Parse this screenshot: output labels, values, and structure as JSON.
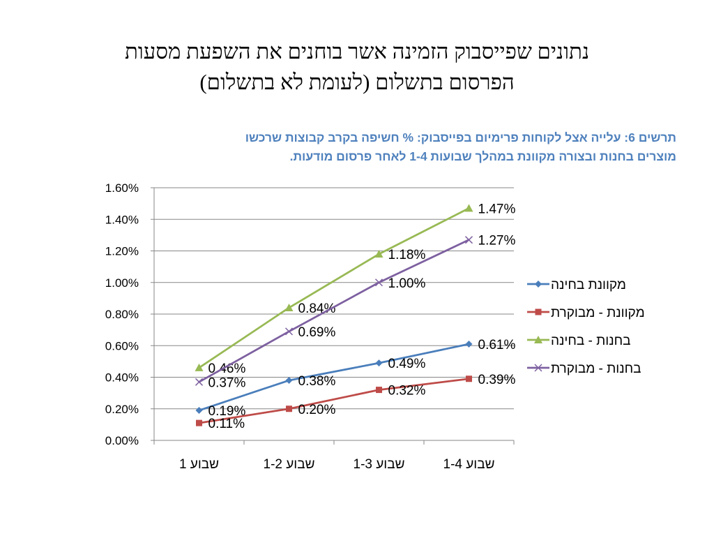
{
  "slide_title": {
    "line1": "נתונים שפייסבוק הזמינה אשר בוחנים את השפעת מסעות",
    "line2": "הפרסום בתשלום (לעומת לא בתשלום)"
  },
  "caption": {
    "line1": "תרשים 6: עלייה אצל לקוחות פרימיום בפייסבוק: % חשיפה בקרב קבוצות שרכשו",
    "line2": "מוצרים בחנות ובצורה מקוונת במהלך שבועות 1-4 לאחר פרסום מודעות."
  },
  "chart_data": {
    "type": "line",
    "title": "",
    "xlabel": "",
    "ylabel": "",
    "categories": [
      "שבוע 1",
      "שבוע 1-2",
      "שבוע 1-3",
      "שבוע 1-4"
    ],
    "ylim": [
      0,
      0.016
    ],
    "yticks": [
      0,
      0.002,
      0.004,
      0.006,
      0.008,
      0.01,
      0.012,
      0.014,
      0.016
    ],
    "ytick_labels": [
      "0.00%",
      "0.20%",
      "0.40%",
      "0.60%",
      "0.80%",
      "1.00%",
      "1.20%",
      "1.40%",
      "1.60%"
    ],
    "grid": "horizontal",
    "legend_position": "right",
    "series": [
      {
        "name": "מקוונת בחינה",
        "color": "#4a7ebb",
        "marker": "diamond",
        "values": [
          0.0019,
          0.0038,
          0.0049,
          0.0061
        ],
        "labels": [
          "0.19%",
          "0.38%",
          "0.49%",
          "0.61%"
        ]
      },
      {
        "name": "מקוונת - מבוקרת",
        "color": "#be4b48",
        "marker": "square",
        "values": [
          0.0011,
          0.002,
          0.0032,
          0.0039
        ],
        "labels": [
          "0.11%",
          "0.20%",
          "0.32%",
          "0.39%"
        ]
      },
      {
        "name": "בחנות - בחינה",
        "color": "#98b954",
        "marker": "triangle",
        "values": [
          0.0046,
          0.0084,
          0.0118,
          0.0147
        ],
        "labels": [
          "0.46%",
          "0.84%",
          "1.18%",
          "1.47%"
        ]
      },
      {
        "name": "בחנות - מבוקרת",
        "color": "#7d60a0",
        "marker": "x",
        "values": [
          0.0037,
          0.0069,
          0.01,
          0.0127
        ],
        "labels": [
          "0.37%",
          "0.69%",
          "1.00%",
          "1.27%"
        ]
      }
    ]
  }
}
